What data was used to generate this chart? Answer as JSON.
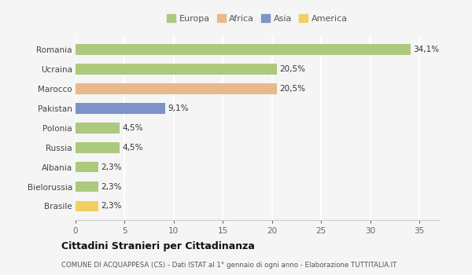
{
  "categories": [
    "Romania",
    "Ucraina",
    "Marocco",
    "Pakistan",
    "Polonia",
    "Russia",
    "Albania",
    "Bielorussia",
    "Brasile"
  ],
  "values": [
    34.1,
    20.5,
    20.5,
    9.1,
    4.5,
    4.5,
    2.3,
    2.3,
    2.3
  ],
  "labels": [
    "34,1%",
    "20,5%",
    "20,5%",
    "9,1%",
    "4,5%",
    "4,5%",
    "2,3%",
    "2,3%",
    "2,3%"
  ],
  "colors": [
    "#adc97e",
    "#adc97e",
    "#e8b98a",
    "#7b93c9",
    "#adc97e",
    "#adc97e",
    "#adc97e",
    "#adc97e",
    "#f0d060"
  ],
  "legend_labels": [
    "Europa",
    "Africa",
    "Asia",
    "America"
  ],
  "legend_colors": [
    "#adc97e",
    "#e8b98a",
    "#7b93c9",
    "#f0d060"
  ],
  "title": "Cittadini Stranieri per Cittadinanza",
  "subtitle": "COMUNE DI ACQUAPPESA (CS) - Dati ISTAT al 1° gennaio di ogni anno - Elaborazione TUTTITALIA.IT",
  "xlim": [
    0,
    37
  ],
  "xticks": [
    0,
    5,
    10,
    15,
    20,
    25,
    30,
    35
  ],
  "background_color": "#f5f5f5",
  "grid_color": "#ffffff",
  "bar_height": 0.55
}
